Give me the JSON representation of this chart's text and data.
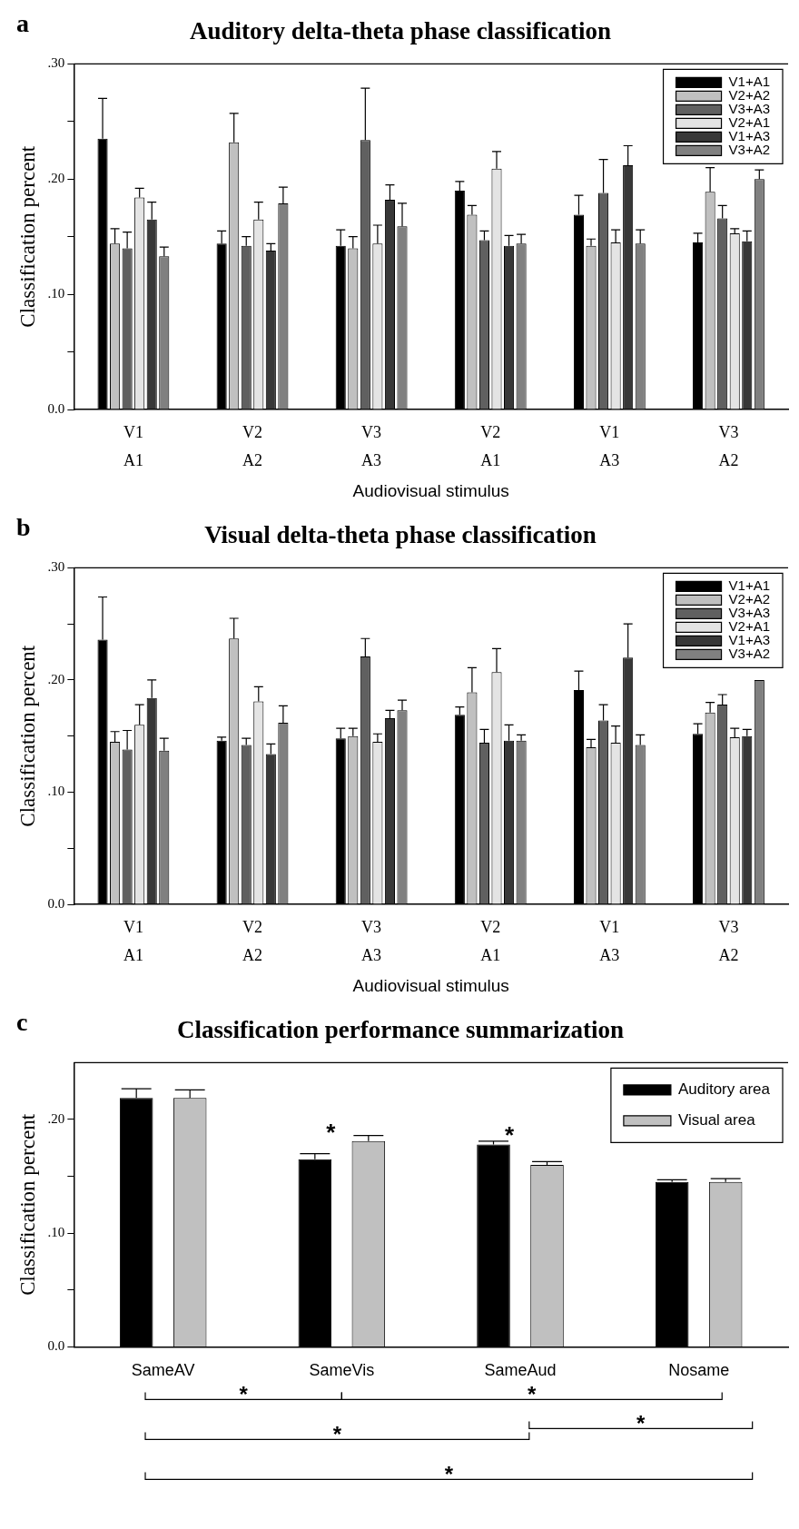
{
  "chart_data": [
    {
      "type": "bar",
      "title": "Auditory delta-theta phase classification",
      "xlabel": "Audiovisual stimulus",
      "ylabel": "Classification percent",
      "categories": [
        "V1\nA1",
        "V2\nA2",
        "V3\nA3",
        "V2\nA1",
        "V1\nA3",
        "V3\nA2"
      ],
      "ylim": [
        0,
        0.3
      ],
      "yticks": [
        {
          "value": 0,
          "label": "0.0"
        },
        {
          "value": 0.05,
          "label": null
        },
        {
          "value": 0.1,
          "label": ".10"
        },
        {
          "value": 0.15,
          "label": null
        },
        {
          "value": 0.2,
          "label": ".20"
        },
        {
          "value": 0.25,
          "label": null
        },
        {
          "value": 0.3,
          "label": ".30"
        }
      ],
      "legend": "top right",
      "annotations": [
        "a"
      ],
      "series": [
        {
          "name": "V1+A1",
          "color": "#000000",
          "values": [
            0.235,
            0.144,
            0.142,
            0.19,
            0.169,
            0.145
          ],
          "errors": [
            [
              0.235,
              0.27
            ],
            [
              0.144,
              0.155
            ],
            [
              0.142,
              0.156
            ],
            [
              0.19,
              0.198
            ],
            [
              0.169,
              0.186
            ],
            [
              0.145,
              0.153
            ]
          ]
        },
        {
          "name": "V2+A2",
          "color": "#c0c0c0",
          "values": [
            0.144,
            0.232,
            0.14,
            0.169,
            0.142,
            0.189
          ],
          "errors": [
            [
              0.144,
              0.157
            ],
            [
              0.232,
              0.257
            ],
            [
              0.14,
              0.15
            ],
            [
              0.169,
              0.177
            ],
            [
              0.142,
              0.148
            ],
            [
              0.189,
              0.21
            ]
          ]
        },
        {
          "name": "V3+A3",
          "color": "#606060",
          "values": [
            0.14,
            0.142,
            0.234,
            0.147,
            0.188,
            0.166
          ],
          "errors": [
            [
              0.14,
              0.154
            ],
            [
              0.142,
              0.15
            ],
            [
              0.234,
              0.279
            ],
            [
              0.147,
              0.155
            ],
            [
              0.188,
              0.217
            ],
            [
              0.166,
              0.177
            ]
          ]
        },
        {
          "name": "V2+A1",
          "color": "#e4e4e4",
          "values": [
            0.184,
            0.165,
            0.144,
            0.209,
            0.145,
            0.153
          ],
          "errors": [
            [
              0.184,
              0.192
            ],
            [
              0.165,
              0.18
            ],
            [
              0.144,
              0.16
            ],
            [
              0.209,
              0.224
            ],
            [
              0.145,
              0.156
            ],
            [
              0.153,
              0.157
            ]
          ]
        },
        {
          "name": "V1+A3",
          "color": "#383838",
          "values": [
            0.165,
            0.138,
            0.182,
            0.142,
            0.212,
            0.146
          ],
          "errors": [
            [
              0.165,
              0.18
            ],
            [
              0.138,
              0.144
            ],
            [
              0.182,
              0.195
            ],
            [
              0.142,
              0.151
            ],
            [
              0.212,
              0.229
            ],
            [
              0.146,
              0.155
            ]
          ]
        },
        {
          "name": "V3+A2",
          "color": "#808080",
          "values": [
            0.133,
            0.179,
            0.159,
            0.144,
            0.144,
            0.2
          ],
          "errors": [
            [
              0.133,
              0.141
            ],
            [
              0.179,
              0.193
            ],
            [
              0.159,
              0.179
            ],
            [
              0.144,
              0.152
            ],
            [
              0.144,
              0.156
            ],
            [
              0.2,
              0.208
            ]
          ]
        }
      ]
    },
    {
      "type": "bar",
      "title": "Visual delta-theta phase classification",
      "xlabel": "Audiovisual stimulus",
      "ylabel": "Classification percent",
      "categories": [
        "V1\nA1",
        "V2\nA2",
        "V3\nA3",
        "V2\nA1",
        "V1\nA3",
        "V3\nA2"
      ],
      "ylim": [
        0,
        0.3
      ],
      "yticks": [
        {
          "value": 0,
          "label": "0.0"
        },
        {
          "value": 0.05,
          "label": null
        },
        {
          "value": 0.1,
          "label": ".10"
        },
        {
          "value": 0.15,
          "label": null
        },
        {
          "value": 0.2,
          "label": ".20"
        },
        {
          "value": 0.25,
          "label": null
        },
        {
          "value": 0.3,
          "label": ".30"
        }
      ],
      "legend": "top right",
      "annotations": [
        "b"
      ],
      "series": [
        {
          "name": "V1+A1",
          "color": "#000000",
          "values": [
            0.236,
            0.146,
            0.148,
            0.169,
            0.191,
            0.152
          ],
          "errors": [
            [
              0.236,
              0.274
            ],
            [
              0.146,
              0.149
            ],
            [
              0.148,
              0.157
            ],
            [
              0.169,
              0.176
            ],
            [
              0.191,
              0.208
            ],
            [
              0.152,
              0.161
            ]
          ]
        },
        {
          "name": "V2+A2",
          "color": "#c0c0c0",
          "values": [
            0.145,
            0.237,
            0.15,
            0.189,
            0.14,
            0.171
          ],
          "errors": [
            [
              0.145,
              0.154
            ],
            [
              0.237,
              0.255
            ],
            [
              0.15,
              0.157
            ],
            [
              0.189,
              0.211
            ],
            [
              0.14,
              0.147
            ],
            [
              0.171,
              0.18
            ]
          ]
        },
        {
          "name": "V3+A3",
          "color": "#606060",
          "values": [
            0.138,
            0.142,
            0.221,
            0.144,
            0.164,
            0.178
          ],
          "errors": [
            [
              0.138,
              0.155
            ],
            [
              0.142,
              0.148
            ],
            [
              0.221,
              0.237
            ],
            [
              0.144,
              0.156
            ],
            [
              0.164,
              0.178
            ],
            [
              0.178,
              0.187
            ]
          ]
        },
        {
          "name": "V2+A1",
          "color": "#e4e4e4",
          "values": [
            0.16,
            0.181,
            0.145,
            0.207,
            0.144,
            0.149
          ],
          "errors": [
            [
              0.16,
              0.178
            ],
            [
              0.181,
              0.194
            ],
            [
              0.145,
              0.152
            ],
            [
              0.207,
              0.228
            ],
            [
              0.144,
              0.159
            ],
            [
              0.149,
              0.157
            ]
          ]
        },
        {
          "name": "V1+A3",
          "color": "#383838",
          "values": [
            0.184,
            0.134,
            0.166,
            0.146,
            0.22,
            0.15
          ],
          "errors": [
            [
              0.184,
              0.2
            ],
            [
              0.134,
              0.143
            ],
            [
              0.166,
              0.173
            ],
            [
              0.146,
              0.16
            ],
            [
              0.22,
              0.25
            ],
            [
              0.15,
              0.156
            ]
          ]
        },
        {
          "name": "V3+A2",
          "color": "#808080",
          "values": [
            0.137,
            0.162,
            0.173,
            0.146,
            0.142,
            0.2
          ],
          "errors": [
            [
              0.137,
              0.148
            ],
            [
              0.162,
              0.177
            ],
            [
              0.173,
              0.182
            ],
            [
              0.146,
              0.151
            ],
            [
              0.142,
              0.151
            ],
            null
          ]
        }
      ]
    },
    {
      "type": "bar",
      "title": "Classification performance summarization",
      "ylabel": "Classification percent",
      "categories": [
        "SameAV",
        "SameVis",
        "SameAud",
        "Nosame"
      ],
      "ylim": [
        0,
        0.25
      ],
      "yticks": [
        {
          "value": 0,
          "label": "0.0"
        },
        {
          "value": 0.05,
          "label": null
        },
        {
          "value": 0.1,
          "label": ".10"
        },
        {
          "value": 0.15,
          "label": null
        },
        {
          "value": 0.2,
          "label": ".20"
        }
      ],
      "legend": "top right",
      "annotations": [
        "c",
        "*",
        "*",
        "*",
        "*",
        "*",
        "*",
        "*"
      ],
      "series": [
        {
          "name": "Auditory area",
          "color": "#000000",
          "values": [
            0.219,
            0.165,
            0.178,
            0.145
          ],
          "errors": [
            [
              0.219,
              0.227
            ],
            [
              0.165,
              0.17
            ],
            [
              0.178,
              0.181
            ],
            [
              0.145,
              0.147
            ]
          ]
        },
        {
          "name": "Visual area",
          "color": "#c0c0c0",
          "values": [
            0.219,
            0.181,
            0.16,
            0.145
          ],
          "errors": [
            [
              0.219,
              0.226
            ],
            [
              0.181,
              0.186
            ],
            [
              0.16,
              0.163
            ],
            [
              0.145,
              0.148
            ]
          ]
        }
      ]
    }
  ]
}
